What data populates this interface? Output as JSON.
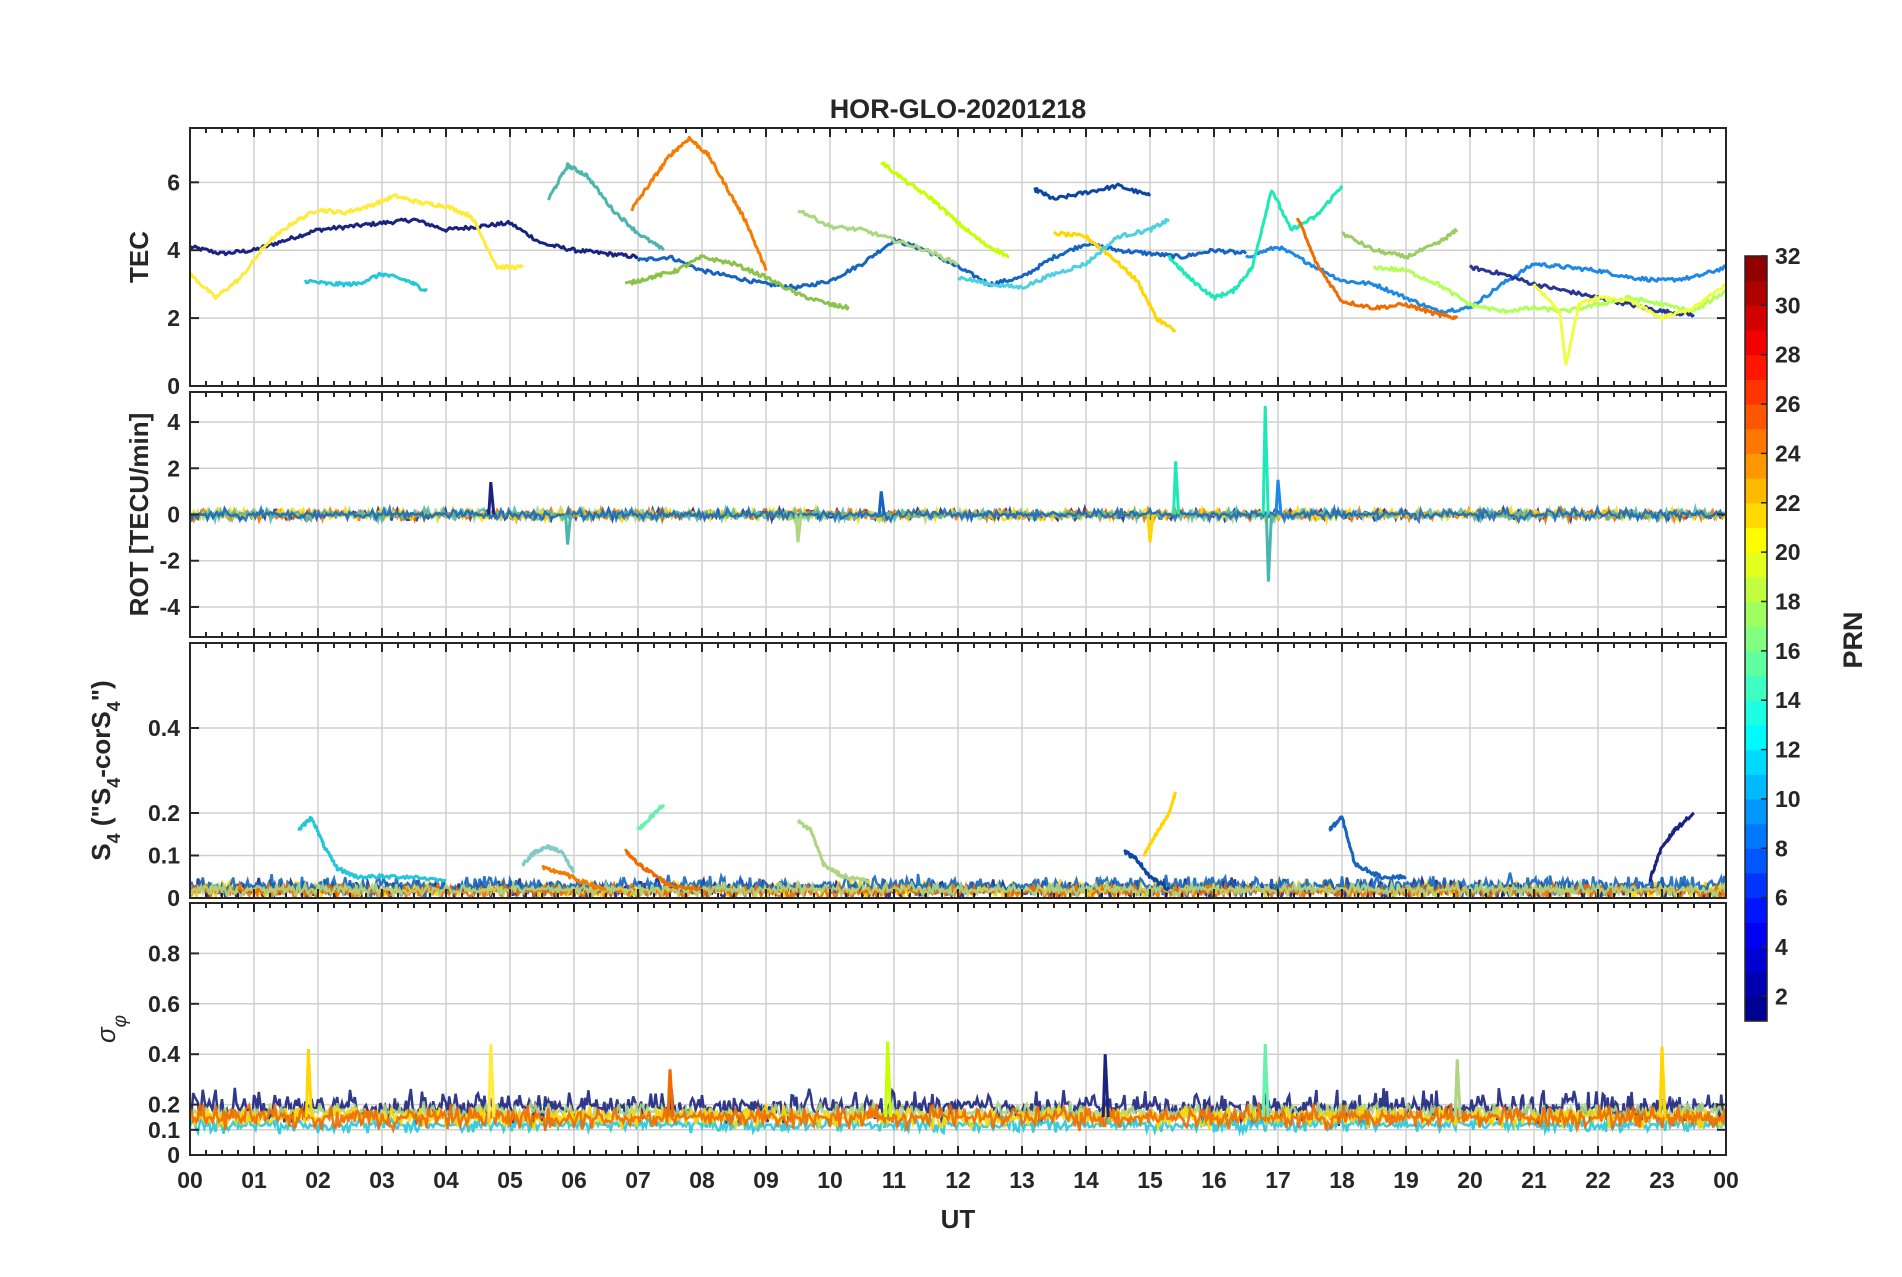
{
  "chart_data": [
    {
      "panel": "tec",
      "type": "line",
      "title": "HOR-GLO-20201218",
      "ylabel": "TEC",
      "ylim": [
        0,
        7.6
      ],
      "yticks": [
        0,
        2,
        4,
        6
      ],
      "x_unit": "hours UT",
      "xlim": [
        0,
        24
      ],
      "grid": true,
      "series": [
        {
          "color": "#1a237e",
          "x": [
            0.0,
            0.5,
            1.0,
            1.5,
            2.0,
            2.5,
            3.0,
            3.5,
            4.0,
            4.5,
            5.0,
            5.5,
            6.0,
            6.5,
            7.0
          ],
          "y": [
            4.1,
            3.9,
            4.0,
            4.3,
            4.6,
            4.7,
            4.8,
            4.9,
            4.6,
            4.7,
            4.8,
            4.2,
            4.0,
            3.9,
            3.8
          ]
        },
        {
          "color": "#1565c0",
          "x": [
            7.0,
            7.5,
            8.0,
            8.5,
            9.0,
            9.5,
            10.0,
            10.5,
            11.0,
            11.5,
            12.0,
            12.5,
            13.0,
            13.5,
            14.0,
            14.5,
            15.0,
            15.5,
            16.0,
            16.5
          ],
          "y": [
            3.7,
            3.8,
            3.4,
            3.2,
            3.0,
            2.9,
            3.1,
            3.6,
            4.3,
            4.0,
            3.5,
            3.0,
            3.2,
            3.8,
            4.2,
            4.0,
            3.9,
            3.8,
            4.0,
            3.9
          ]
        },
        {
          "color": "#0d47a1",
          "x": [
            13.2,
            13.5,
            14.0,
            14.5,
            15.0
          ],
          "y": [
            5.8,
            5.5,
            5.7,
            5.9,
            5.6
          ]
        },
        {
          "color": "#1e88e5",
          "x": [
            16.5,
            17.0,
            17.5,
            18.0,
            18.5,
            19.0,
            19.5,
            20.0,
            20.5,
            21.0,
            21.5,
            22.0,
            22.5,
            23.0,
            23.5,
            24.0
          ],
          "y": [
            3.8,
            4.1,
            3.6,
            3.1,
            3.0,
            2.6,
            2.2,
            2.3,
            3.0,
            3.6,
            3.5,
            3.4,
            3.2,
            3.1,
            3.2,
            3.5
          ]
        },
        {
          "color": "#283593",
          "x": [
            20.0,
            20.5,
            21.0,
            21.5,
            22.0,
            22.5,
            23.0,
            23.5
          ],
          "y": [
            3.5,
            3.3,
            3.0,
            2.8,
            2.6,
            2.4,
            2.2,
            2.1
          ]
        },
        {
          "color": "#ffeb3b",
          "x": [
            0.0,
            0.4,
            0.8,
            1.2,
            1.6,
            2.0,
            2.4,
            2.8,
            3.2,
            3.6,
            4.0,
            4.4,
            4.8,
            5.2
          ],
          "y": [
            3.3,
            2.6,
            3.2,
            4.2,
            4.8,
            5.2,
            5.1,
            5.3,
            5.6,
            5.4,
            5.3,
            5.0,
            3.5,
            3.5
          ]
        },
        {
          "color": "#ffd600",
          "x": [
            13.5,
            14.0,
            14.4,
            14.8,
            15.1,
            15.4
          ],
          "y": [
            4.5,
            4.4,
            3.8,
            3.1,
            2.0,
            1.6
          ]
        },
        {
          "color": "#26c6da",
          "x": [
            1.8,
            2.2,
            2.6,
            3.0,
            3.4,
            3.7
          ],
          "y": [
            3.1,
            3.0,
            3.0,
            3.3,
            3.1,
            2.8
          ]
        },
        {
          "color": "#4dd0e1",
          "x": [
            12.0,
            12.5,
            13.0,
            13.5,
            14.0,
            14.5,
            15.0,
            15.3
          ],
          "y": [
            3.2,
            3.0,
            2.9,
            3.3,
            3.6,
            4.4,
            4.6,
            4.9
          ]
        },
        {
          "color": "#4db6ac",
          "x": [
            5.6,
            5.9,
            6.2,
            6.6,
            7.0,
            7.4
          ],
          "y": [
            5.5,
            6.5,
            6.2,
            5.2,
            4.5,
            4.0
          ]
        },
        {
          "color": "#1de9b6",
          "x": [
            15.3,
            15.6,
            16.0,
            16.3,
            16.6,
            16.9,
            17.2,
            17.6,
            18.0
          ],
          "y": [
            3.8,
            3.2,
            2.6,
            2.8,
            3.5,
            5.8,
            4.6,
            5.0,
            5.9
          ]
        },
        {
          "color": "#f57c00",
          "x": [
            6.9,
            7.2,
            7.5,
            7.8,
            8.1,
            8.4,
            8.7,
            9.0
          ],
          "y": [
            5.2,
            6.0,
            6.8,
            7.3,
            6.8,
            5.8,
            4.8,
            3.4
          ]
        },
        {
          "color": "#ef6c00",
          "x": [
            17.3,
            17.6,
            18.0,
            18.5,
            19.0,
            19.5,
            19.8
          ],
          "y": [
            5.0,
            3.6,
            2.5,
            2.3,
            2.4,
            2.1,
            2.0
          ]
        },
        {
          "color": "#aed581",
          "x": [
            9.5,
            10.0,
            10.5,
            11.0,
            11.5,
            12.0
          ],
          "y": [
            5.2,
            4.7,
            4.6,
            4.3,
            4.0,
            3.6
          ]
        },
        {
          "color": "#c6ff00",
          "x": [
            10.8,
            11.2,
            11.6,
            12.0,
            12.4,
            12.8
          ],
          "y": [
            6.6,
            6.0,
            5.5,
            4.8,
            4.2,
            3.8
          ]
        },
        {
          "color": "#8bc34a",
          "x": [
            6.8,
            7.2,
            7.6,
            8.0,
            8.5,
            9.0,
            9.5,
            10.0,
            10.3
          ],
          "y": [
            3.0,
            3.2,
            3.4,
            3.8,
            3.6,
            3.2,
            2.7,
            2.4,
            2.3
          ]
        },
        {
          "color": "#9ccc65",
          "x": [
            18.0,
            18.5,
            19.0,
            19.5,
            19.8
          ],
          "y": [
            4.5,
            4.0,
            3.8,
            4.2,
            4.6
          ]
        },
        {
          "color": "#b2ff59",
          "x": [
            18.5,
            19.0,
            19.5,
            20.0,
            20.5,
            21.0,
            21.5,
            22.0,
            22.5,
            23.0,
            23.5,
            24.0
          ],
          "y": [
            3.5,
            3.4,
            3.0,
            2.4,
            2.2,
            2.3,
            2.2,
            2.4,
            2.6,
            2.4,
            2.2,
            2.8
          ]
        },
        {
          "color": "#eeff41",
          "x": [
            21.0,
            21.4,
            21.5,
            21.7,
            22.0,
            22.5,
            23.0,
            23.5,
            24.0
          ],
          "y": [
            3.0,
            2.2,
            0.6,
            2.4,
            2.6,
            2.5,
            2.0,
            2.3,
            3.0
          ]
        }
      ]
    },
    {
      "panel": "rot",
      "type": "line",
      "ylabel": "ROT [TECU/min]",
      "ylim": [
        -5.3,
        5.3
      ],
      "yticks": [
        -4,
        -2,
        0,
        2,
        4
      ],
      "xlim": [
        0,
        24
      ],
      "grid": true,
      "baseline": 0,
      "noise_amp": 0.3,
      "spikes": [
        {
          "x": 4.7,
          "y": 1.4,
          "color": "#1a237e"
        },
        {
          "x": 5.9,
          "y": -1.3,
          "color": "#4db6ac"
        },
        {
          "x": 9.5,
          "y": -1.2,
          "color": "#aed581"
        },
        {
          "x": 10.8,
          "y": 1.0,
          "color": "#1565c0"
        },
        {
          "x": 15.0,
          "y": -1.2,
          "color": "#ffd600"
        },
        {
          "x": 15.4,
          "y": 2.3,
          "color": "#1de9b6"
        },
        {
          "x": 16.8,
          "y": 4.7,
          "color": "#1de9b6"
        },
        {
          "x": 16.85,
          "y": -2.9,
          "color": "#4db6ac"
        },
        {
          "x": 17.0,
          "y": 1.5,
          "color": "#1e88e5"
        }
      ]
    },
    {
      "panel": "s4",
      "type": "line",
      "ylabel": "S4 (\"S4-corS4\")",
      "ylim": [
        0,
        0.6
      ],
      "yticks": [
        0,
        0.1,
        0.2,
        0.4
      ],
      "xlim": [
        0,
        24
      ],
      "grid": true,
      "series": [
        {
          "color": "#26c6da",
          "x": [
            1.7,
            1.9,
            2.1,
            2.3,
            2.6,
            3.0,
            3.5,
            4.0
          ],
          "y": [
            0.16,
            0.19,
            0.12,
            0.07,
            0.05,
            0.05,
            0.05,
            0.04
          ]
        },
        {
          "color": "#80cbc4",
          "x": [
            5.2,
            5.4,
            5.6,
            5.8,
            6.0
          ],
          "y": [
            0.08,
            0.11,
            0.12,
            0.11,
            0.06
          ]
        },
        {
          "color": "#f57c00",
          "x": [
            5.5,
            5.8,
            6.1,
            6.5
          ],
          "y": [
            0.07,
            0.06,
            0.04,
            0.02
          ]
        },
        {
          "color": "#ef6c00",
          "x": [
            6.8,
            7.0,
            7.2,
            7.5,
            8.0
          ],
          "y": [
            0.11,
            0.08,
            0.06,
            0.03,
            0.02
          ]
        },
        {
          "color": "#69f0ae",
          "x": [
            7.0,
            7.2,
            7.4
          ],
          "y": [
            0.16,
            0.19,
            0.22
          ]
        },
        {
          "color": "#aed581",
          "x": [
            9.5,
            9.7,
            9.9,
            10.2,
            10.6
          ],
          "y": [
            0.18,
            0.16,
            0.08,
            0.05,
            0.04
          ]
        },
        {
          "color": "#ffd600",
          "x": [
            14.9,
            15.1,
            15.3,
            15.4
          ],
          "y": [
            0.1,
            0.15,
            0.2,
            0.25
          ]
        },
        {
          "color": "#1565c0",
          "x": [
            17.8,
            18.0,
            18.2,
            18.6,
            19.0
          ],
          "y": [
            0.16,
            0.19,
            0.08,
            0.05,
            0.05
          ]
        },
        {
          "color": "#0d47a1",
          "x": [
            14.6,
            14.8,
            15.0,
            15.3
          ],
          "y": [
            0.11,
            0.09,
            0.05,
            0.02
          ]
        },
        {
          "color": "#1a237e",
          "x": [
            22.8,
            23.0,
            23.2,
            23.5
          ],
          "y": [
            0.04,
            0.12,
            0.16,
            0.2
          ]
        }
      ],
      "noise_series": [
        {
          "color": "#1a237e",
          "base": 0.02,
          "amp": 0.03
        },
        {
          "color": "#ffd600",
          "base": 0.02,
          "amp": 0.025
        },
        {
          "color": "#1565c0",
          "base": 0.03,
          "amp": 0.03
        },
        {
          "color": "#ef6c00",
          "base": 0.015,
          "amp": 0.02
        },
        {
          "color": "#aed581",
          "base": 0.02,
          "amp": 0.02
        }
      ]
    },
    {
      "panel": "sigma",
      "type": "line",
      "ylabel": "σφ",
      "ylim": [
        0,
        1.0
      ],
      "yticks": [
        0,
        0.1,
        0.2,
        0.4,
        0.6,
        0.8
      ],
      "xlim": [
        0,
        24
      ],
      "xticks": [
        "00",
        "01",
        "02",
        "03",
        "04",
        "05",
        "06",
        "07",
        "08",
        "09",
        "10",
        "11",
        "12",
        "13",
        "14",
        "15",
        "16",
        "17",
        "18",
        "19",
        "20",
        "21",
        "22",
        "23",
        "00"
      ],
      "xlabel": "UT",
      "grid": true,
      "noise_series": [
        {
          "color": "#1a237e",
          "base": 0.19,
          "amp": 0.08
        },
        {
          "color": "#26c6da",
          "base": 0.12,
          "amp": 0.04
        },
        {
          "color": "#aed581",
          "base": 0.17,
          "amp": 0.05
        },
        {
          "color": "#ffd600",
          "base": 0.15,
          "amp": 0.05
        },
        {
          "color": "#ef6c00",
          "base": 0.15,
          "amp": 0.06
        }
      ],
      "spikes": [
        {
          "x": 1.85,
          "y": 0.42,
          "color": "#ffd600"
        },
        {
          "x": 4.7,
          "y": 0.44,
          "color": "#ffeb3b"
        },
        {
          "x": 7.5,
          "y": 0.34,
          "color": "#ef6c00"
        },
        {
          "x": 10.9,
          "y": 0.45,
          "color": "#c6ff00"
        },
        {
          "x": 14.3,
          "y": 0.4,
          "color": "#1a237e"
        },
        {
          "x": 16.8,
          "y": 0.44,
          "color": "#69f0ae"
        },
        {
          "x": 19.8,
          "y": 0.38,
          "color": "#aed581"
        },
        {
          "x": 23.0,
          "y": 0.43,
          "color": "#ffd600"
        }
      ]
    }
  ],
  "colorbar": {
    "label": "PRN",
    "ticks": [
      "2",
      "4",
      "6",
      "8",
      "10",
      "12",
      "14",
      "16",
      "18",
      "20",
      "22",
      "24",
      "26",
      "28",
      "30",
      "32"
    ],
    "tick_values": [
      2,
      4,
      6,
      8,
      10,
      12,
      14,
      16,
      18,
      20,
      22,
      24,
      26,
      28,
      30,
      32
    ],
    "range": [
      1,
      32
    ],
    "colormap": "jet"
  }
}
